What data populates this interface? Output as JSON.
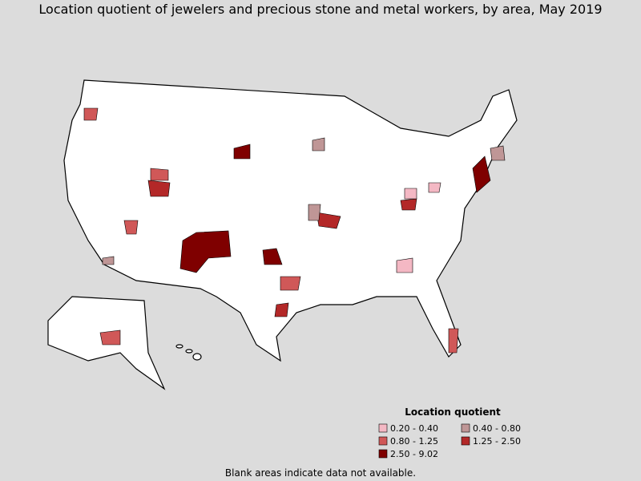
{
  "title": "Location quotient of jewelers and precious stone and metal workers, by area, May 2019",
  "legend": {
    "title": "Location quotient",
    "items": [
      {
        "label": "0.20 - 0.40",
        "color": "#f4b8c4"
      },
      {
        "label": "0.40 - 0.80",
        "color": "#bf9696"
      },
      {
        "label": "0.80 - 1.25",
        "color": "#d05858"
      },
      {
        "label": "1.25 - 2.50",
        "color": "#b32828"
      },
      {
        "label": "2.50 - 9.02",
        "color": "#7f0000"
      }
    ]
  },
  "footnote": "Blank areas indicate data not available."
}
